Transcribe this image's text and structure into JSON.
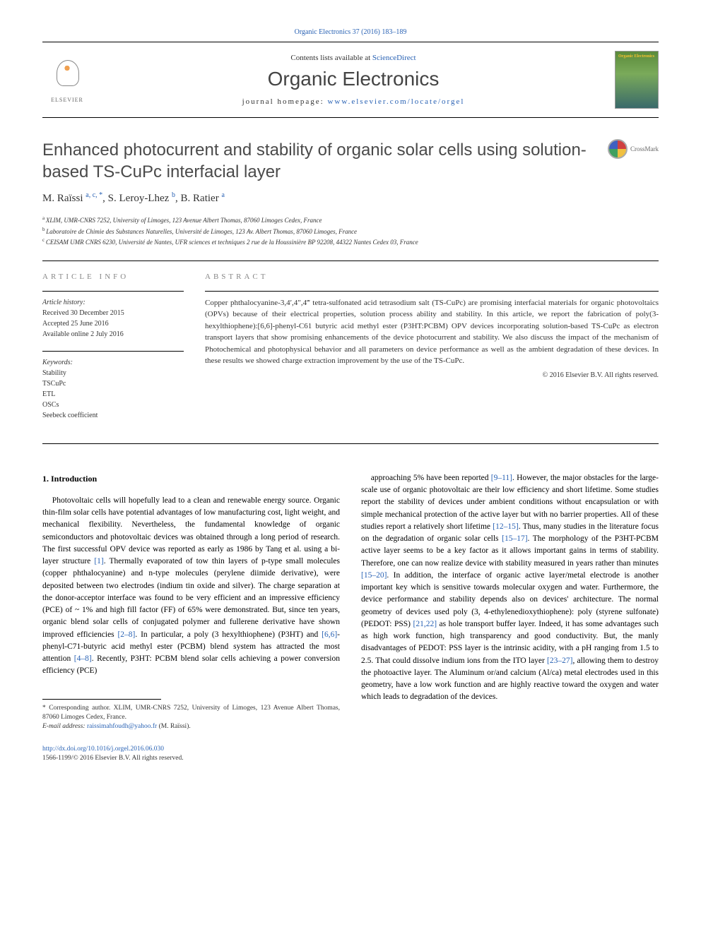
{
  "top_link": "Organic Electronics 37 (2016) 183–189",
  "header": {
    "contents_pre": "Contents lists available at ",
    "contents_link": "ScienceDirect",
    "journal_name": "Organic Electronics",
    "homepage_pre": "journal homepage: ",
    "homepage_link": "www.elsevier.com/locate/orgel",
    "elsevier_label": "ELSEVIER",
    "cover_text": "Organic Electronics"
  },
  "crossmark_label": "CrossMark",
  "title": "Enhanced photocurrent and stability of organic solar cells using solution-based TS-CuPc interfacial layer",
  "authors_html": "M. Raïssi <sup>a, c, *</sup>, S. Leroy-Lhez <sup>b</sup>, B. Ratier <sup>a</sup>",
  "authors": [
    {
      "name": "M. Raïssi",
      "sup": "a, c, *"
    },
    {
      "name": "S. Leroy-Lhez",
      "sup": "b"
    },
    {
      "name": "B. Ratier",
      "sup": "a"
    }
  ],
  "affiliations": [
    {
      "sup": "a",
      "text": "XLIM, UMR-CNRS 7252, University of Limoges, 123 Avenue Albert Thomas, 87060 Limoges Cedex, France"
    },
    {
      "sup": "b",
      "text": "Laboratoire de Chimie des Substances Naturelles, Université de Limoges, 123 Av. Albert Thomas, 87060 Limoges, France"
    },
    {
      "sup": "c",
      "text": "CEISAM UMR CNRS 6230, Université de Nantes, UFR sciences et techniques 2 rue de la Houssinière BP 92208, 44322 Nantes Cedex 03, France"
    }
  ],
  "info": {
    "heading": "ARTICLE INFO",
    "history_label": "Article history:",
    "history": [
      "Received 30 December 2015",
      "Accepted 25 June 2016",
      "Available online 2 July 2016"
    ],
    "keywords_label": "Keywords:",
    "keywords": [
      "Stability",
      "TSCuPc",
      "ETL",
      "OSCs",
      "Seebeck coefficient"
    ]
  },
  "abstract": {
    "heading": "ABSTRACT",
    "text": "Copper phthalocyanine-3,4′,4″,4‴ tetra-sulfonated acid tetrasodium salt (TS-CuPc) are promising interfacial materials for organic photovoltaics (OPVs) because of their electrical properties, solution process ability and stability. In this article, we report the fabrication of poly(3-hexylthiophene):[6,6]-phenyl-C61 butyric acid methyl ester (P3HT:PCBM) OPV devices incorporating solution-based TS-CuPc as electron transport layers that show promising enhancements of the device photocurrent and stability. We also discuss the impact of the mechanism of Photochemical and photophysical behavior and all parameters on device performance as well as the ambient degradation of these devices. In these results we showed charge extraction improvement by the use of the TS-CuPc.",
    "copyright": "© 2016 Elsevier B.V. All rights reserved."
  },
  "body": {
    "section_heading": "1. Introduction",
    "col1_paragraph": "Photovoltaic cells will hopefully lead to a clean and renewable energy source. Organic thin-film solar cells have potential advantages of low manufacturing cost, light weight, and mechanical flexibility. Nevertheless, the fundamental knowledge of organic semiconductors and photovoltaic devices was obtained through a long period of research. The first successful OPV device was reported as early as 1986 by Tang et al. using a bi-layer structure [1]. Thermally evaporated of tow thin layers of p-type small molecules (copper phthalocyanine) and n-type molecules (perylene diimide derivative), were deposited between two electrodes (indium tin oxide and silver). The charge separation at the donor-acceptor interface was found to be very efficient and an impressive efficiency (PCE) of ~ 1% and high fill factor (FF) of 65% were demonstrated. But, since ten years, organic blend solar cells of conjugated polymer and fullerene derivative have shown improved efficiencies [2–8]. In particular, a poly (3 hexylthiophene) (P3HT) and [6,6]-phenyl-C71-butyric acid methyl ester (PCBM) blend system has attracted the most attention [4–8]. Recently, P3HT: PCBM blend solar cells achieving a power conversion efficiency (PCE)",
    "col2_paragraph": "approaching 5% have been reported [9–11]. However, the major obstacles for the large-scale use of organic photovoltaic are their low efficiency and short lifetime. Some studies report the stability of devices under ambient conditions without encapsulation or with simple mechanical protection of the active layer but with no barrier properties. All of these studies report a relatively short lifetime [12–15]. Thus, many studies in the literature focus on the degradation of organic solar cells [15–17]. The morphology of the P3HT-PCBM active layer seems to be a key factor as it allows important gains in terms of stability. Therefore, one can now realize device with stability measured in years rather than minutes [15–20]. In addition, the interface of organic active layer/metal electrode is another important key which is sensitive towards molecular oxygen and water. Furthermore, the device performance and stability depends also on devices' architecture. The normal geometry of devices used poly (3, 4-ethylenedioxythiophene): poly (styrene sulfonate) (PEDOT: PSS) [21,22] as hole transport buffer layer. Indeed, it has some advantages such as high work function, high transparency and good conductivity. But, the manly disadvantages of PEDOT: PSS layer is the intrinsic acidity, with a pH ranging from 1.5 to 2.5. That could dissolve indium ions from the ITO layer [23–27], allowing them to destroy the photoactive layer. The Aluminum or/and calcium (Al/ca) metal electrodes used in this geometry, have a low work function and are highly reactive toward the oxygen and water which leads to degradation of the devices."
  },
  "footnotes": {
    "corr": "* Corresponding author. XLIM, UMR-CNRS 7252, University of Limoges, 123 Avenue Albert Thomas, 87060 Limoges Cedex, France.",
    "email_label": "E-mail address: ",
    "email": "raissimahfoudh@yahoo.fr",
    "email_tail": " (M. Raïssi)."
  },
  "footer": {
    "doi": "http://dx.doi.org/10.1016/j.orgel.2016.06.030",
    "issn_line": "1566-1199/© 2016 Elsevier B.V. All rights reserved."
  },
  "cites": {
    "c1": "[1]",
    "c2_8": "[2–8]",
    "c66": "[6,6]",
    "c4_8": "[4–8]",
    "c9_11": "[9–11]",
    "c12_15": "[12–15]",
    "c15_17": "[15–17]",
    "c15_20": "[15–20]",
    "c21_22": "[21,22]",
    "c23_27": "[23–27]"
  },
  "colors": {
    "link": "#2962b4",
    "text": "#333333",
    "heading_gray": "#888888",
    "title_gray": "#4a4a4a"
  }
}
